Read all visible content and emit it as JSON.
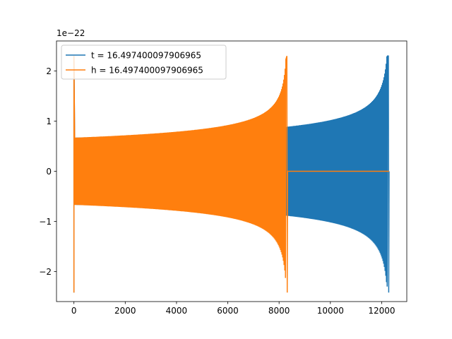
{
  "chart_data": {
    "type": "line",
    "title": "",
    "xlabel": "",
    "ylabel": "",
    "y_scale_text": "1e−22",
    "xlim": [
      -680,
      12980
    ],
    "ylim": [
      -2.6,
      2.6
    ],
    "x_ticks": [
      0,
      2000,
      4000,
      6000,
      8000,
      10000,
      12000
    ],
    "x_tick_labels": [
      "0",
      "2000",
      "4000",
      "6000",
      "8000",
      "10000",
      "12000"
    ],
    "y_ticks": [
      -2,
      -1,
      0,
      1,
      2
    ],
    "y_tick_labels": [
      "−2",
      "−1",
      "0",
      "1",
      "2"
    ],
    "grid": false,
    "legend_placement": "top-left",
    "series": [
      {
        "name": "t = 16.497400097906965",
        "color": "#1f77b4",
        "signal": "chirp",
        "x_start": 0,
        "x_end": 12290,
        "envelope_start": 0.67,
        "envelope_end": 2.3,
        "peak_min": -2.42
      },
      {
        "name": "h = 16.497400097906965",
        "color": "#ff7f0e",
        "signal": "chirp",
        "x_start": 0,
        "x_end": 8330,
        "flat_until": 12290,
        "envelope_start": 0.67,
        "envelope_end": 2.3,
        "peak_min": -2.42
      }
    ]
  }
}
